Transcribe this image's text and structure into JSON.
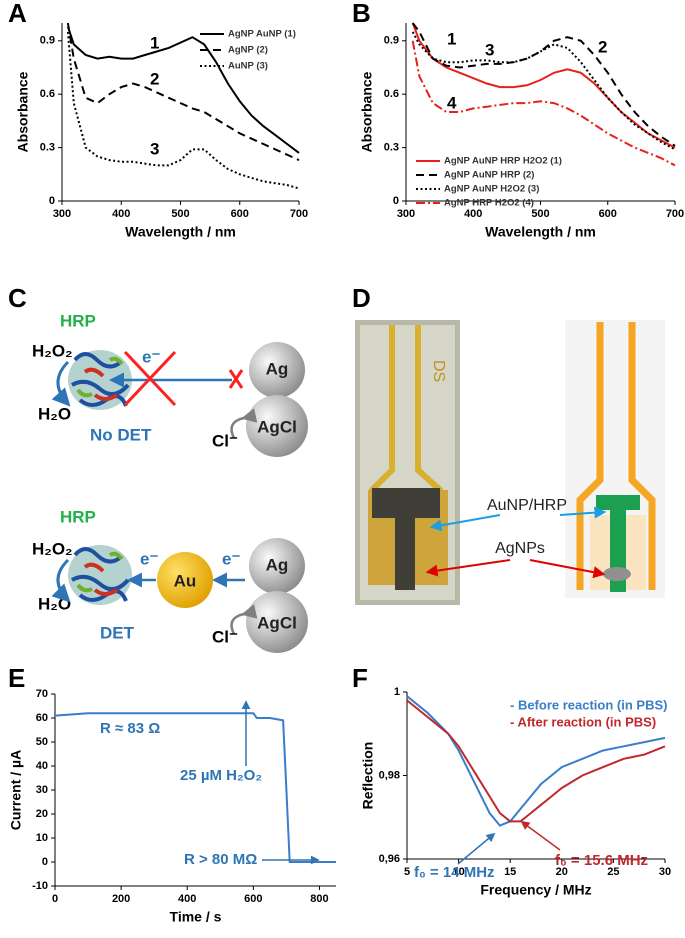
{
  "chart_data": [
    {
      "type": "line",
      "panel": "A",
      "xlabel": "Wavelength / nm",
      "ylabel": "Absorbance",
      "x": [
        310,
        320,
        340,
        360,
        380,
        400,
        420,
        440,
        460,
        480,
        500,
        520,
        540,
        560,
        580,
        600,
        620,
        640,
        660,
        680,
        700
      ],
      "series": [
        {
          "name": "AgNP AuNP (1)",
          "color": "#000000",
          "dash": "solid",
          "values": [
            0.98,
            0.88,
            0.82,
            0.8,
            0.81,
            0.8,
            0.8,
            0.82,
            0.84,
            0.86,
            0.89,
            0.92,
            0.88,
            0.78,
            0.66,
            0.56,
            0.48,
            0.42,
            0.37,
            0.32,
            0.27
          ]
        },
        {
          "name": "AgNP (2)",
          "color": "#000000",
          "dash": "dashed",
          "values": [
            1.0,
            0.8,
            0.58,
            0.55,
            0.6,
            0.64,
            0.66,
            0.64,
            0.61,
            0.58,
            0.55,
            0.52,
            0.5,
            0.46,
            0.42,
            0.38,
            0.35,
            0.32,
            0.29,
            0.26,
            0.23
          ]
        },
        {
          "name": "AuNP (3)",
          "color": "#000000",
          "dash": "dotted",
          "values": [
            0.95,
            0.55,
            0.3,
            0.25,
            0.23,
            0.22,
            0.22,
            0.21,
            0.2,
            0.2,
            0.23,
            0.29,
            0.29,
            0.23,
            0.18,
            0.15,
            0.13,
            0.11,
            0.1,
            0.09,
            0.07
          ]
        }
      ],
      "annotations": [
        {
          "text": "1"
        },
        {
          "text": "2"
        },
        {
          "text": "3"
        }
      ],
      "xlim": [
        300,
        700
      ],
      "xticks": [
        300,
        400,
        500,
        600,
        700
      ],
      "ylim": [
        0,
        1
      ],
      "yticks": [
        0,
        0.3,
        0.6,
        0.9
      ],
      "legend": "upper right"
    },
    {
      "type": "line",
      "panel": "B",
      "xlabel": "Wavelength / nm",
      "ylabel": "Absorbance",
      "x": [
        310,
        320,
        340,
        360,
        380,
        400,
        420,
        440,
        460,
        480,
        500,
        520,
        540,
        560,
        580,
        600,
        620,
        640,
        660,
        680,
        700
      ],
      "series": [
        {
          "name": "AgNP AuNP HRP H2O2 (1)",
          "color": "#e8201c",
          "dash": "solid",
          "values": [
            1.0,
            0.9,
            0.8,
            0.75,
            0.72,
            0.69,
            0.66,
            0.64,
            0.64,
            0.65,
            0.68,
            0.72,
            0.74,
            0.72,
            0.66,
            0.58,
            0.5,
            0.44,
            0.38,
            0.34,
            0.3
          ]
        },
        {
          "name": "AgNP AuNP HRP (2)",
          "color": "#000000",
          "dash": "dashed",
          "values": [
            1.0,
            0.95,
            0.8,
            0.76,
            0.75,
            0.76,
            0.77,
            0.77,
            0.78,
            0.8,
            0.84,
            0.9,
            0.92,
            0.9,
            0.82,
            0.72,
            0.6,
            0.5,
            0.42,
            0.36,
            0.31
          ]
        },
        {
          "name": "AgNP AuNP H2O2 (3)",
          "color": "#000000",
          "dash": "dotted",
          "values": [
            0.95,
            0.88,
            0.8,
            0.78,
            0.78,
            0.79,
            0.79,
            0.78,
            0.78,
            0.8,
            0.84,
            0.88,
            0.86,
            0.78,
            0.68,
            0.58,
            0.5,
            0.43,
            0.38,
            0.33,
            0.29
          ]
        },
        {
          "name": "AgNP HRP H2O2 (4)",
          "color": "#e8201c",
          "dash": "dashdot",
          "values": [
            0.9,
            0.7,
            0.55,
            0.5,
            0.5,
            0.52,
            0.53,
            0.54,
            0.55,
            0.55,
            0.56,
            0.55,
            0.52,
            0.48,
            0.43,
            0.38,
            0.34,
            0.3,
            0.27,
            0.24,
            0.2
          ]
        }
      ],
      "annotations": [
        {
          "text": "1"
        },
        {
          "text": "2"
        },
        {
          "text": "3"
        },
        {
          "text": "4"
        }
      ],
      "xlim": [
        300,
        700
      ],
      "xticks": [
        300,
        400,
        500,
        600,
        700
      ],
      "ylim": [
        0,
        1
      ],
      "yticks": [
        0,
        0.3,
        0.6,
        0.9
      ],
      "legend": "lower left"
    },
    {
      "type": "line",
      "panel": "E",
      "xlabel": "Time / s",
      "ylabel": "Current / µA",
      "x": [
        0,
        100,
        200,
        300,
        400,
        500,
        600,
        610,
        650,
        690,
        700,
        710,
        850
      ],
      "series": [
        {
          "name": null,
          "color": "#3a7dc9",
          "dash": "solid",
          "values": [
            61,
            62,
            62,
            62,
            62,
            62,
            62,
            60,
            60,
            59,
            30,
            0,
            0
          ]
        }
      ],
      "annotations": [
        {
          "text": "R ≈ 83 Ω",
          "color": "#2e75b6"
        },
        {
          "text": "25 µM H₂O₂",
          "color": "#2e75b6"
        },
        {
          "text": "R > 80 MΩ",
          "color": "#2e75b6"
        }
      ],
      "xlim": [
        0,
        850
      ],
      "xticks": [
        0,
        200,
        400,
        600,
        800
      ],
      "ylim": [
        -10,
        70
      ],
      "yticks": [
        -10,
        0,
        10,
        20,
        30,
        40,
        50,
        60,
        70
      ],
      "legend": null
    },
    {
      "type": "line",
      "panel": "F",
      "xlabel": "Frequency / MHz",
      "ylabel": "Reflection",
      "x": [
        5,
        7,
        9,
        10,
        11,
        12,
        13,
        14,
        15,
        16,
        17,
        18,
        19,
        20,
        22,
        24,
        26,
        28,
        30
      ],
      "series": [
        {
          "name": "- Before reaction (in PBS)",
          "color": "#3a7dc9",
          "dash": "solid",
          "values": [
            0.999,
            0.995,
            0.99,
            0.986,
            0.981,
            0.976,
            0.971,
            0.968,
            0.969,
            0.972,
            0.975,
            0.978,
            0.98,
            0.982,
            0.984,
            0.986,
            0.987,
            0.988,
            0.989
          ]
        },
        {
          "name": "- After reaction (in PBS)",
          "color": "#c0282d",
          "dash": "solid",
          "values": [
            0.998,
            0.994,
            0.99,
            0.987,
            0.983,
            0.979,
            0.975,
            0.971,
            0.969,
            0.969,
            0.971,
            0.973,
            0.975,
            0.977,
            0.98,
            0.982,
            0.984,
            0.985,
            0.987
          ]
        }
      ],
      "annotations": [
        {
          "text": "f₀ = 14 MHz",
          "color": "#2e75b6"
        },
        {
          "text": "f₀ = 15.6 MHz",
          "color": "#c0282d"
        }
      ],
      "xlim": [
        5,
        30
      ],
      "xticks": [
        5,
        10,
        15,
        20,
        25,
        30
      ],
      "ylim": [
        0.96,
        1
      ],
      "yticks": [
        {
          "value": 0.96,
          "label": "0,96"
        },
        {
          "value": 0.98,
          "label": "0,98"
        },
        1
      ],
      "legend": "upper right text"
    }
  ],
  "diagrams": {
    "C": {
      "label": "C",
      "top": {
        "enzyme": "HRP",
        "substrate": "H₂O₂",
        "product": "H₂O",
        "electron": "e⁻",
        "mode": "No DET",
        "ag": "Ag",
        "agcl": "AgCl",
        "chloride": "Cl⁻"
      },
      "bottom": {
        "enzyme": "HRP",
        "substrate": "H₂O₂",
        "product": "H₂O",
        "electron_left": "e⁻",
        "au": "Au",
        "electron_right": "e⁻",
        "mode": "DET",
        "ag": "Ag",
        "agcl": "AgCl",
        "chloride": "Cl⁻"
      }
    },
    "D": {
      "label": "D",
      "chip_mark": "DS",
      "annotations": [
        "AuNP/HRP",
        "AgNPs"
      ]
    }
  }
}
